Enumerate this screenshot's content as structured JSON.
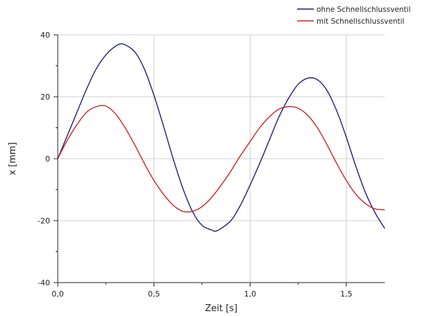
{
  "chart_data": {
    "type": "line",
    "title": "",
    "xlabel": "Zeit [s]",
    "ylabel": "x [mm]",
    "xlim": [
      0,
      1.7
    ],
    "ylim": [
      -40,
      40
    ],
    "grid": true,
    "legend_position": "top-right",
    "x_ticks": [
      "0,0",
      "0,5",
      "1,0",
      "1,5"
    ],
    "x_tick_values": [
      0,
      0.5,
      1.0,
      1.5
    ],
    "y_ticks": [
      "-40",
      "-20",
      "0",
      "20",
      "40"
    ],
    "y_tick_values": [
      -40,
      -20,
      0,
      20,
      40
    ],
    "series": [
      {
        "name": "ohne Schnellschlussventil",
        "color": "#1f1f7a",
        "x": [
          0,
          0.05,
          0.1,
          0.15,
          0.2,
          0.25,
          0.3,
          0.34,
          0.4,
          0.45,
          0.5,
          0.55,
          0.6,
          0.65,
          0.7,
          0.75,
          0.8,
          0.83,
          0.9,
          0.95,
          1.0,
          1.05,
          1.1,
          1.15,
          1.2,
          1.25,
          1.3,
          1.35,
          1.4,
          1.45,
          1.5,
          1.55,
          1.6,
          1.65,
          1.7
        ],
        "y": [
          0,
          7.5,
          15,
          22.5,
          29,
          33.5,
          36.3,
          37,
          34.5,
          29,
          20.5,
          10.5,
          0,
          -9.5,
          -17,
          -21.5,
          -23,
          -23.2,
          -20,
          -15,
          -8.5,
          -1.5,
          6,
          13.5,
          19.5,
          24,
          26,
          25.5,
          22,
          15.5,
          7,
          -2.5,
          -11,
          -17.5,
          -22.5
        ]
      },
      {
        "name": "mit Schnellschlussventil",
        "color": "#cc2222",
        "x": [
          0,
          0.05,
          0.1,
          0.15,
          0.2,
          0.25,
          0.3,
          0.35,
          0.4,
          0.45,
          0.5,
          0.55,
          0.6,
          0.65,
          0.7,
          0.75,
          0.8,
          0.85,
          0.9,
          0.95,
          1.0,
          1.05,
          1.1,
          1.15,
          1.2,
          1.25,
          1.3,
          1.35,
          1.4,
          1.45,
          1.5,
          1.55,
          1.6,
          1.65,
          1.7
        ],
        "y": [
          0,
          6,
          11,
          15,
          16.8,
          17,
          14.5,
          10,
          4.5,
          -1.5,
          -7,
          -11.5,
          -15,
          -17,
          -17,
          -15.5,
          -12.5,
          -8.5,
          -4,
          1,
          5.5,
          10,
          13.5,
          16,
          16.8,
          16.3,
          14,
          10,
          4.5,
          -1.5,
          -7,
          -11.5,
          -14.5,
          -16.2,
          -16.5
        ]
      }
    ]
  }
}
